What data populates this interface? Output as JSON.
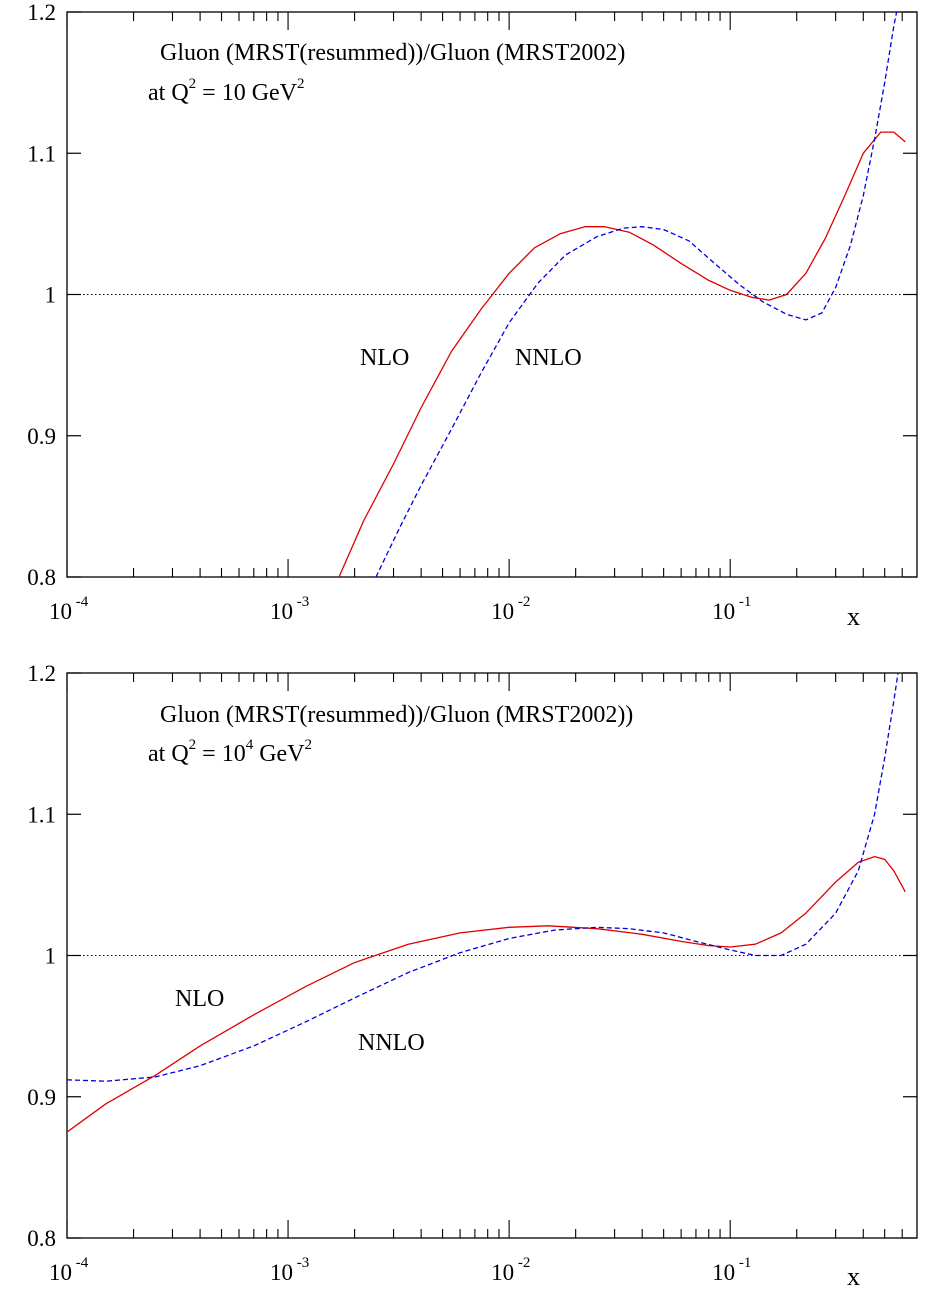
{
  "chart_data": [
    {
      "type": "line",
      "title_line1": "Gluon (MRST(resummed))/Gluon (MRST2002)",
      "title_line2_prefix": "at Q",
      "title_line2_sup1": "2",
      "title_line2_mid": " = 10 GeV",
      "title_line2_sup2": "2",
      "xlabel": "x",
      "x_scale": "log",
      "xlim": [
        0.0001,
        0.7
      ],
      "ylim": [
        0.8,
        1.2
      ],
      "y_ticks": [
        "0.8",
        "0.9",
        "1",
        "1.1",
        "1.2"
      ],
      "x_ticks": [
        {
          "value": 0.0001,
          "base": "10",
          "exp": "-4"
        },
        {
          "value": 0.001,
          "base": "10",
          "exp": "-3"
        },
        {
          "value": 0.01,
          "base": "10",
          "exp": "-2"
        },
        {
          "value": 0.1,
          "base": "10",
          "exp": "-1"
        }
      ],
      "reference_line": 1.0,
      "series": [
        {
          "name": "NLO",
          "color": "#e00000",
          "style": "solid",
          "x": [
            0.0017,
            0.0022,
            0.003,
            0.004,
            0.0055,
            0.0075,
            0.01,
            0.013,
            0.017,
            0.022,
            0.027,
            0.035,
            0.045,
            0.06,
            0.08,
            0.1,
            0.125,
            0.15,
            0.18,
            0.22,
            0.27,
            0.33,
            0.4,
            0.48,
            0.55,
            0.62
          ],
          "y": [
            0.8,
            0.84,
            0.88,
            0.92,
            0.96,
            0.99,
            1.015,
            1.033,
            1.043,
            1.048,
            1.048,
            1.044,
            1.035,
            1.022,
            1.01,
            1.003,
            0.998,
            0.996,
            1.0,
            1.015,
            1.04,
            1.07,
            1.1,
            1.115,
            1.115,
            1.108
          ]
        },
        {
          "name": "NNLO",
          "color": "#0000e0",
          "style": "dashed",
          "x": [
            0.0025,
            0.0032,
            0.004,
            0.0055,
            0.0075,
            0.01,
            0.0135,
            0.018,
            0.025,
            0.033,
            0.04,
            0.05,
            0.065,
            0.085,
            0.11,
            0.14,
            0.18,
            0.22,
            0.26,
            0.3,
            0.35,
            0.4,
            0.45,
            0.5,
            0.55,
            0.6
          ],
          "y": [
            0.8,
            0.835,
            0.865,
            0.905,
            0.945,
            0.98,
            1.008,
            1.028,
            1.041,
            1.047,
            1.048,
            1.046,
            1.038,
            1.022,
            1.007,
            0.995,
            0.986,
            0.982,
            0.987,
            1.005,
            1.035,
            1.07,
            1.11,
            1.15,
            1.19,
            1.22
          ]
        }
      ],
      "annotations": [
        {
          "text": "NLO",
          "x": 0.0033,
          "y": 0.975
        },
        {
          "text": "NNLO",
          "x": 0.021,
          "y": 0.975
        }
      ]
    },
    {
      "type": "line",
      "title_line1": "Gluon (MRST(resummed))/Gluon (MRST2002))",
      "title_line2_prefix": "at Q",
      "title_line2_sup1": "2",
      "title_line2_mid": " = 10",
      "title_line2_sup_mid": "4",
      "title_line2_mid2": " GeV",
      "title_line2_sup2": "2",
      "xlabel": "x",
      "x_scale": "log",
      "xlim": [
        0.0001,
        0.7
      ],
      "ylim": [
        0.8,
        1.2
      ],
      "y_ticks": [
        "0.8",
        "0.9",
        "1",
        "1.1",
        "1.2"
      ],
      "x_ticks": [
        {
          "value": 0.0001,
          "base": "10",
          "exp": "-4"
        },
        {
          "value": 0.001,
          "base": "10",
          "exp": "-3"
        },
        {
          "value": 0.01,
          "base": "10",
          "exp": "-2"
        },
        {
          "value": 0.1,
          "base": "10",
          "exp": "-1"
        }
      ],
      "reference_line": 1.0,
      "series": [
        {
          "name": "NLO",
          "color": "#e00000",
          "style": "solid",
          "x": [
            0.0001,
            0.00015,
            0.00025,
            0.0004,
            0.0007,
            0.0012,
            0.002,
            0.0035,
            0.006,
            0.01,
            0.015,
            0.025,
            0.04,
            0.06,
            0.08,
            0.1,
            0.13,
            0.17,
            0.22,
            0.3,
            0.38,
            0.45,
            0.5,
            0.55,
            0.62
          ],
          "y": [
            0.875,
            0.895,
            0.915,
            0.936,
            0.958,
            0.978,
            0.995,
            1.008,
            1.016,
            1.02,
            1.021,
            1.019,
            1.015,
            1.01,
            1.007,
            1.006,
            1.008,
            1.016,
            1.03,
            1.052,
            1.066,
            1.07,
            1.068,
            1.06,
            1.045
          ]
        },
        {
          "name": "NNLO",
          "color": "#0000e0",
          "style": "dashed",
          "x": [
            0.0001,
            0.00015,
            0.00025,
            0.0004,
            0.0007,
            0.0012,
            0.002,
            0.0035,
            0.006,
            0.01,
            0.016,
            0.025,
            0.035,
            0.05,
            0.07,
            0.1,
            0.13,
            0.17,
            0.22,
            0.3,
            0.38,
            0.45,
            0.5,
            0.55,
            0.6
          ],
          "y": [
            0.912,
            0.911,
            0.914,
            0.922,
            0.936,
            0.953,
            0.97,
            0.988,
            1.002,
            1.012,
            1.018,
            1.02,
            1.019,
            1.016,
            1.01,
            1.004,
            1.0,
            1.0,
            1.008,
            1.03,
            1.06,
            1.1,
            1.14,
            1.18,
            1.22
          ]
        }
      ],
      "annotations": [
        {
          "text": "NLO",
          "x": 0.0004,
          "y": 0.961
        },
        {
          "text": "NNLO",
          "x": 0.0035,
          "y": 0.937
        }
      ]
    }
  ]
}
